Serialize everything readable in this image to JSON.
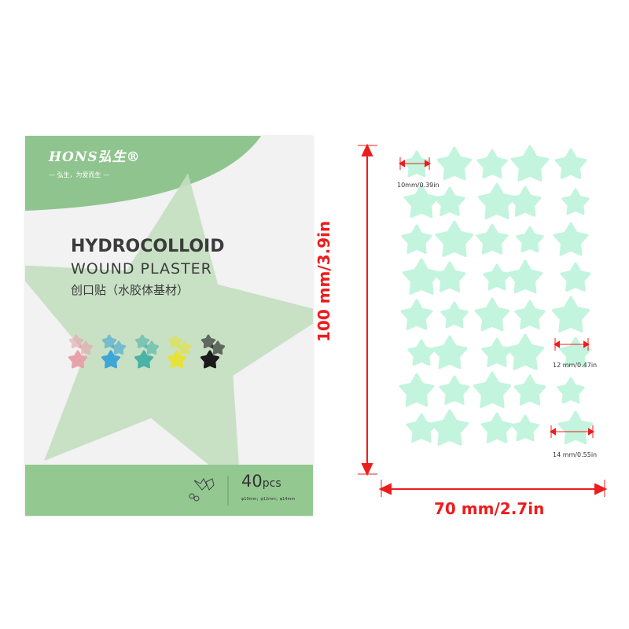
{
  "package": {
    "brand": "HONS弘生®",
    "slogan": "— 弘生，为爱而生 —",
    "title": "HYDROCOLLOID",
    "subtitle": "WOUND PLASTER",
    "chinese_title": "创口贴（水胶体基材）",
    "count": "40",
    "count_unit": "pcs",
    "sizes": "φ10mm；φ12mm；φ14mm",
    "icon": "holly-leaf-icon",
    "colors": {
      "green": "#8fc48e",
      "pale_green": "#c3dfc0",
      "bottom_band": "#93c891"
    },
    "swatches": [
      "#e8a2ab",
      "#3fa5d4",
      "#4bb3a6",
      "#e6e23a",
      "#1a1a1a"
    ]
  },
  "sheet": {
    "star_color": "#c3f4de",
    "arrow_color": "#ee1c1c",
    "height_label": "100 mm/3.9in",
    "width_label": "70 mm/2.7in",
    "small_label": "10mm/0.39in",
    "medium_label": "12 mm/0.47in",
    "large_label": "14 mm/0.55in"
  }
}
